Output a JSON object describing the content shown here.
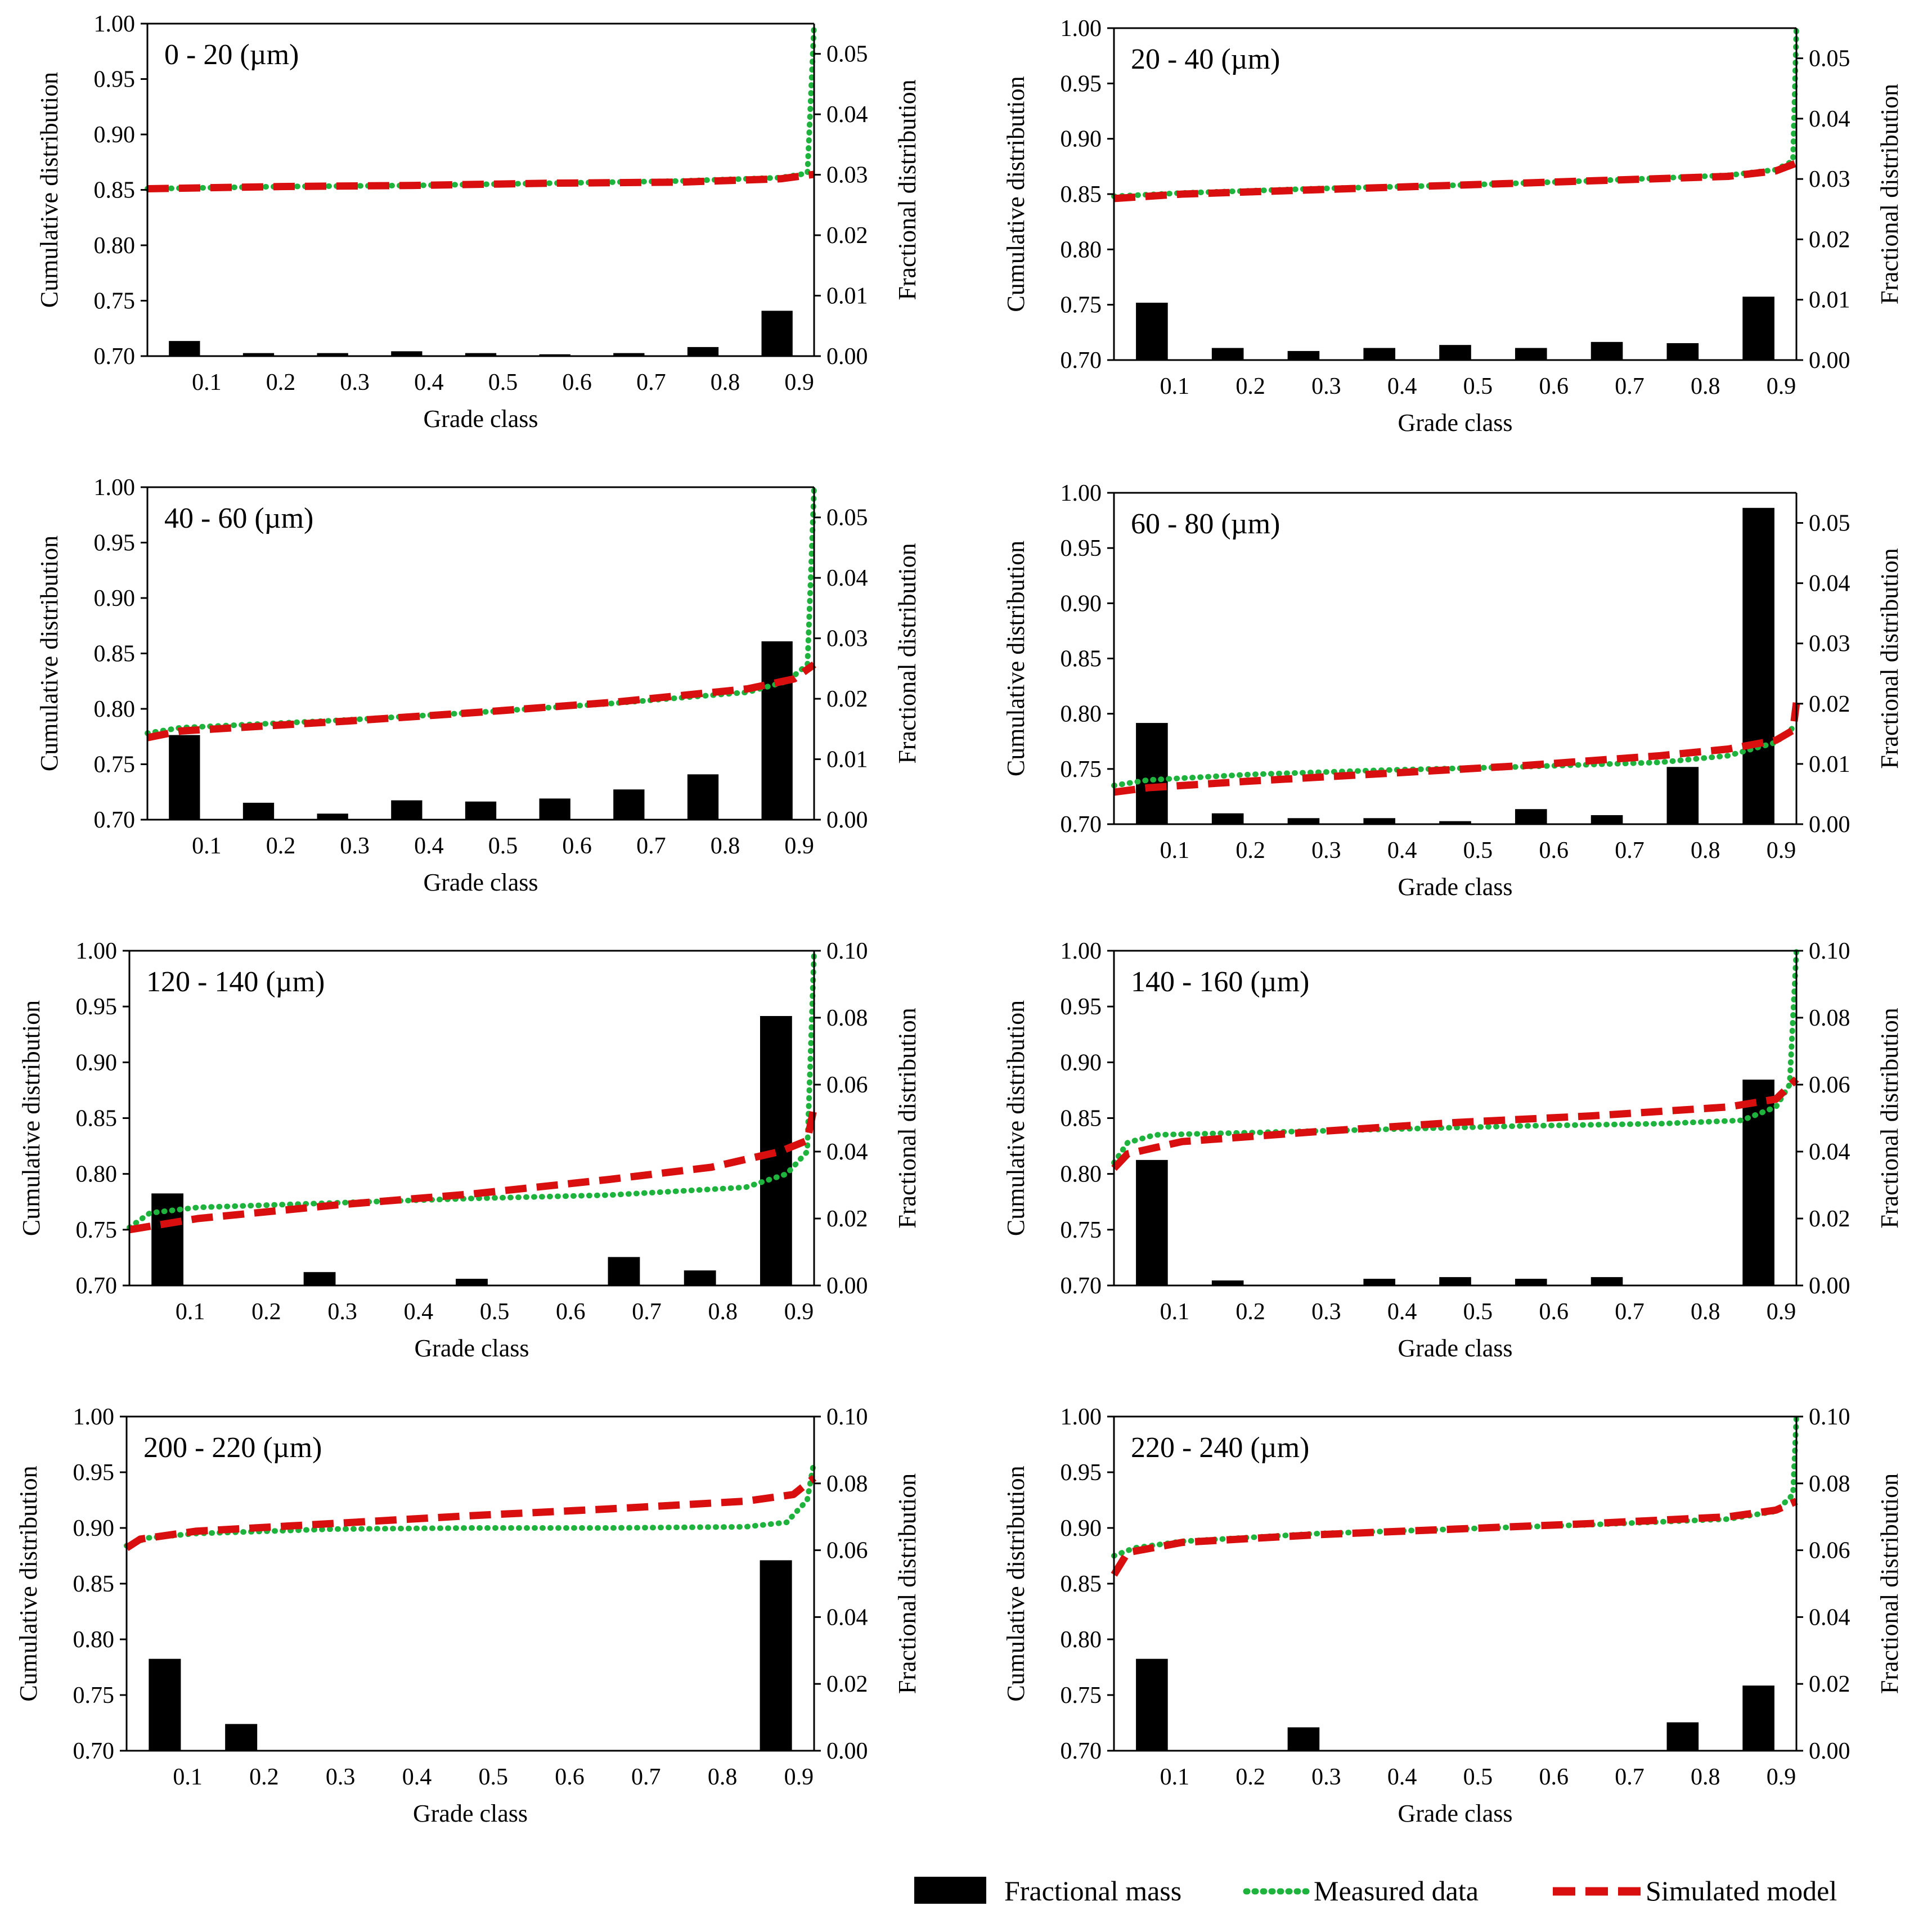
{
  "legend": {
    "bar_label": "Fractional mass",
    "measured_label": "Measured data",
    "simulated_label": "Simulated model"
  },
  "colors": {
    "bar": "#000000",
    "measured": "#1eb33c",
    "simulated": "#d90f0f",
    "axis": "#000000"
  },
  "chart_data": [
    {
      "type": "bar+line",
      "title": "0 - 20 (µm)",
      "xlabel": "Grade class",
      "ylabel": "Cumulative distribution",
      "y2label": "Fractional distribution",
      "categories": [
        "0.1",
        "0.2",
        "0.3",
        "0.4",
        "0.5",
        "0.6",
        "0.7",
        "0.8",
        "0.9"
      ],
      "ylim": [
        0.7,
        1.0
      ],
      "yticks": [
        "0.70",
        "0.75",
        "0.80",
        "0.85",
        "0.90",
        "0.95",
        "1.00"
      ],
      "y2lim": [
        0,
        0.055
      ],
      "y2ticks": [
        "0.00",
        "0.01",
        "0.02",
        "0.03",
        "0.04",
        "0.05"
      ],
      "bars": [
        0.0025,
        0.0005,
        0.0005,
        0.0008,
        0.0005,
        0.0003,
        0.0005,
        0.0015,
        0.0075
      ],
      "series": [
        {
          "name": "Measured data",
          "x": [
            0,
            0.2,
            0.4,
            0.6,
            0.8,
            0.95,
            0.99,
            1.0
          ],
          "y": [
            0.851,
            0.853,
            0.854,
            0.856,
            0.858,
            0.861,
            0.865,
            1.0
          ]
        },
        {
          "name": "Simulated model",
          "x": [
            0,
            0.2,
            0.4,
            0.6,
            0.8,
            0.95,
            1.0
          ],
          "y": [
            0.851,
            0.853,
            0.854,
            0.856,
            0.857,
            0.86,
            0.864
          ]
        }
      ]
    },
    {
      "type": "bar+line",
      "title": "20 - 40 (µm)",
      "xlabel": "Grade class",
      "ylabel": "Cumulative distribution",
      "y2label": "Fractional distribution",
      "categories": [
        "0.1",
        "0.2",
        "0.3",
        "0.4",
        "0.5",
        "0.6",
        "0.7",
        "0.8",
        "0.9"
      ],
      "ylim": [
        0.7,
        1.0
      ],
      "yticks": [
        "0.70",
        "0.75",
        "0.80",
        "0.85",
        "0.90",
        "0.95",
        "1.00"
      ],
      "y2lim": [
        0,
        0.055
      ],
      "y2ticks": [
        "0.00",
        "0.01",
        "0.02",
        "0.03",
        "0.04",
        "0.05"
      ],
      "bars": [
        0.0095,
        0.002,
        0.0015,
        0.002,
        0.0025,
        0.002,
        0.003,
        0.0028,
        0.0105
      ],
      "series": [
        {
          "name": "Measured data",
          "x": [
            0,
            0.1,
            0.3,
            0.5,
            0.7,
            0.9,
            0.97,
            0.995,
            1.0
          ],
          "y": [
            0.848,
            0.851,
            0.855,
            0.858,
            0.862,
            0.867,
            0.872,
            0.88,
            1.0
          ]
        },
        {
          "name": "Simulated model",
          "x": [
            0,
            0.1,
            0.3,
            0.5,
            0.7,
            0.9,
            0.97,
            1.0
          ],
          "y": [
            0.846,
            0.85,
            0.854,
            0.858,
            0.862,
            0.866,
            0.871,
            0.878
          ]
        }
      ]
    },
    {
      "type": "bar+line",
      "title": "40 - 60 (µm)",
      "xlabel": "Grade class",
      "ylabel": "Cumulative distribution",
      "y2label": "Fractional distribution",
      "categories": [
        "0.1",
        "0.2",
        "0.3",
        "0.4",
        "0.5",
        "0.6",
        "0.7",
        "0.8",
        "0.9"
      ],
      "ylim": [
        0.7,
        1.0
      ],
      "yticks": [
        "0.70",
        "0.75",
        "0.80",
        "0.85",
        "0.90",
        "0.95",
        "1.00"
      ],
      "y2lim": [
        0,
        0.055
      ],
      "y2ticks": [
        "0.00",
        "0.01",
        "0.02",
        "0.03",
        "0.04",
        "0.05"
      ],
      "bars": [
        0.014,
        0.0028,
        0.001,
        0.0032,
        0.003,
        0.0035,
        0.005,
        0.0075,
        0.0295
      ],
      "series": [
        {
          "name": "Measured data",
          "x": [
            0,
            0.05,
            0.3,
            0.5,
            0.7,
            0.9,
            0.96,
            0.99,
            1.0
          ],
          "y": [
            0.778,
            0.783,
            0.79,
            0.797,
            0.805,
            0.815,
            0.825,
            0.84,
            1.0
          ]
        },
        {
          "name": "Simulated model",
          "x": [
            0,
            0.05,
            0.3,
            0.5,
            0.7,
            0.9,
            0.97,
            1.0
          ],
          "y": [
            0.774,
            0.78,
            0.789,
            0.797,
            0.806,
            0.818,
            0.827,
            0.84
          ]
        }
      ]
    },
    {
      "type": "bar+line",
      "title": "60 - 80 (µm)",
      "xlabel": "Grade class",
      "ylabel": "Cumulative distribution",
      "y2label": "Fractional distribution",
      "categories": [
        "0.1",
        "0.2",
        "0.3",
        "0.4",
        "0.5",
        "0.6",
        "0.7",
        "0.8",
        "0.9"
      ],
      "ylim": [
        0.7,
        1.0
      ],
      "yticks": [
        "0.70",
        "0.75",
        "0.80",
        "0.85",
        "0.90",
        "0.95",
        "1.00"
      ],
      "y2lim": [
        0,
        0.055
      ],
      "y2ticks": [
        "0.00",
        "0.01",
        "0.02",
        "0.03",
        "0.04",
        "0.05"
      ],
      "bars": [
        0.0168,
        0.0018,
        0.001,
        0.001,
        0.0005,
        0.0025,
        0.0015,
        0.0095,
        0.0525
      ],
      "series": [
        {
          "name": "Measured data",
          "x": [
            0,
            0.05,
            0.2,
            0.4,
            0.6,
            0.8,
            0.9,
            0.97,
            1.0
          ],
          "y": [
            0.735,
            0.74,
            0.745,
            0.749,
            0.752,
            0.756,
            0.762,
            0.774,
            0.79
          ]
        },
        {
          "name": "Simulated model",
          "x": [
            0,
            0.05,
            0.2,
            0.4,
            0.6,
            0.8,
            0.9,
            0.97,
            0.995,
            1.0
          ],
          "y": [
            0.729,
            0.733,
            0.739,
            0.746,
            0.753,
            0.762,
            0.768,
            0.776,
            0.785,
            0.81
          ]
        }
      ]
    },
    {
      "type": "bar+line",
      "title": "120 - 140 (µm)",
      "xlabel": "Grade class",
      "ylabel": "Cumulative distribution",
      "y2label": "Fractional distribution",
      "categories": [
        "0.1",
        "0.2",
        "0.3",
        "0.4",
        "0.5",
        "0.6",
        "0.7",
        "0.8",
        "0.9"
      ],
      "ylim": [
        0.7,
        1.0
      ],
      "yticks": [
        "0.70",
        "0.75",
        "0.80",
        "0.85",
        "0.90",
        "0.95",
        "1.00"
      ],
      "y2lim": [
        0,
        0.1
      ],
      "y2ticks": [
        "0.00",
        "0.02",
        "0.04",
        "0.06",
        "0.08",
        "0.10"
      ],
      "bars": [
        0.0275,
        0,
        0.004,
        0,
        0.002,
        0,
        0.0085,
        0.0045,
        0.0805
      ],
      "series": [
        {
          "name": "Measured data",
          "x": [
            0,
            0.03,
            0.1,
            0.3,
            0.5,
            0.7,
            0.9,
            0.96,
            0.99,
            1.0
          ],
          "y": [
            0.752,
            0.765,
            0.77,
            0.774,
            0.778,
            0.781,
            0.788,
            0.8,
            0.82,
            1.0
          ]
        },
        {
          "name": "Simulated model",
          "x": [
            0,
            0.1,
            0.3,
            0.5,
            0.7,
            0.85,
            0.95,
            0.99,
            1.0
          ],
          "y": [
            0.75,
            0.76,
            0.772,
            0.782,
            0.795,
            0.806,
            0.82,
            0.83,
            0.86
          ]
        }
      ]
    },
    {
      "type": "bar+line",
      "title": "140 - 160 (µm)",
      "xlabel": "Grade class",
      "ylabel": "Cumulative distribution",
      "y2label": "Fractional distribution",
      "categories": [
        "0.1",
        "0.2",
        "0.3",
        "0.4",
        "0.5",
        "0.6",
        "0.7",
        "0.8",
        "0.9"
      ],
      "ylim": [
        0.7,
        1.0
      ],
      "yticks": [
        "0.70",
        "0.75",
        "0.80",
        "0.85",
        "0.90",
        "0.95",
        "1.00"
      ],
      "y2lim": [
        0,
        0.1
      ],
      "y2ticks": [
        "0.00",
        "0.02",
        "0.04",
        "0.06",
        "0.08",
        "0.10"
      ],
      "bars": [
        0.0375,
        0.0015,
        0,
        0.002,
        0.0025,
        0.002,
        0.0025,
        0,
        0.0615
      ],
      "series": [
        {
          "name": "Measured data",
          "x": [
            0,
            0.02,
            0.06,
            0.2,
            0.4,
            0.6,
            0.8,
            0.92,
            0.97,
            0.99,
            1.0
          ],
          "y": [
            0.81,
            0.828,
            0.835,
            0.837,
            0.84,
            0.843,
            0.845,
            0.848,
            0.86,
            0.88,
            1.0
          ]
        },
        {
          "name": "Simulated model",
          "x": [
            0,
            0.02,
            0.1,
            0.3,
            0.5,
            0.7,
            0.9,
            0.97,
            1.0
          ],
          "y": [
            0.805,
            0.818,
            0.829,
            0.838,
            0.846,
            0.852,
            0.86,
            0.867,
            0.885
          ]
        }
      ]
    },
    {
      "type": "bar+line",
      "title": "200 - 220 (µm)",
      "xlabel": "Grade class",
      "ylabel": "Cumulative distribution",
      "y2label": "Fractional distribution",
      "categories": [
        "0.1",
        "0.2",
        "0.3",
        "0.4",
        "0.5",
        "0.6",
        "0.7",
        "0.8",
        "0.9"
      ],
      "ylim": [
        0.7,
        1.0
      ],
      "yticks": [
        "0.70",
        "0.75",
        "0.80",
        "0.85",
        "0.90",
        "0.95",
        "1.00"
      ],
      "y2lim": [
        0,
        0.1
      ],
      "y2ticks": [
        "0.00",
        "0.02",
        "0.04",
        "0.06",
        "0.08",
        "0.10"
      ],
      "bars": [
        0.0275,
        0.008,
        0,
        0,
        0,
        0,
        0,
        0,
        0.057
      ],
      "series": [
        {
          "name": "Measured data",
          "x": [
            0,
            0.03,
            0.1,
            0.3,
            0.5,
            0.7,
            0.9,
            0.96,
            0.99,
            1.0
          ],
          "y": [
            0.884,
            0.891,
            0.895,
            0.899,
            0.9,
            0.9,
            0.901,
            0.905,
            0.925,
            0.96
          ]
        },
        {
          "name": "Simulated model",
          "x": [
            0,
            0.02,
            0.1,
            0.3,
            0.5,
            0.7,
            0.9,
            0.97,
            1.0
          ],
          "y": [
            0.882,
            0.89,
            0.897,
            0.904,
            0.911,
            0.917,
            0.924,
            0.93,
            0.945
          ]
        }
      ]
    },
    {
      "type": "bar+line",
      "title": "220 - 240 (µm)",
      "xlabel": "Grade class",
      "ylabel": "Cumulative distribution",
      "y2label": "Fractional distribution",
      "categories": [
        "0.1",
        "0.2",
        "0.3",
        "0.4",
        "0.5",
        "0.6",
        "0.7",
        "0.8",
        "0.9"
      ],
      "ylim": [
        0.7,
        1.0
      ],
      "yticks": [
        "0.70",
        "0.75",
        "0.80",
        "0.85",
        "0.90",
        "0.95",
        "1.00"
      ],
      "y2lim": [
        0,
        0.1
      ],
      "y2ticks": [
        "0.00",
        "0.02",
        "0.04",
        "0.06",
        "0.08",
        "0.10"
      ],
      "bars": [
        0.0275,
        0,
        0.007,
        0,
        0,
        0,
        0,
        0.0085,
        0.0195
      ],
      "series": [
        {
          "name": "Measured data",
          "x": [
            0,
            0.03,
            0.1,
            0.3,
            0.5,
            0.7,
            0.9,
            0.97,
            0.995,
            1.0
          ],
          "y": [
            0.875,
            0.882,
            0.888,
            0.895,
            0.899,
            0.903,
            0.908,
            0.915,
            0.93,
            1.0
          ]
        },
        {
          "name": "Simulated model",
          "x": [
            0,
            0.02,
            0.1,
            0.3,
            0.5,
            0.7,
            0.9,
            0.97,
            1.0
          ],
          "y": [
            0.858,
            0.878,
            0.887,
            0.894,
            0.899,
            0.904,
            0.91,
            0.916,
            0.924
          ]
        }
      ]
    }
  ]
}
